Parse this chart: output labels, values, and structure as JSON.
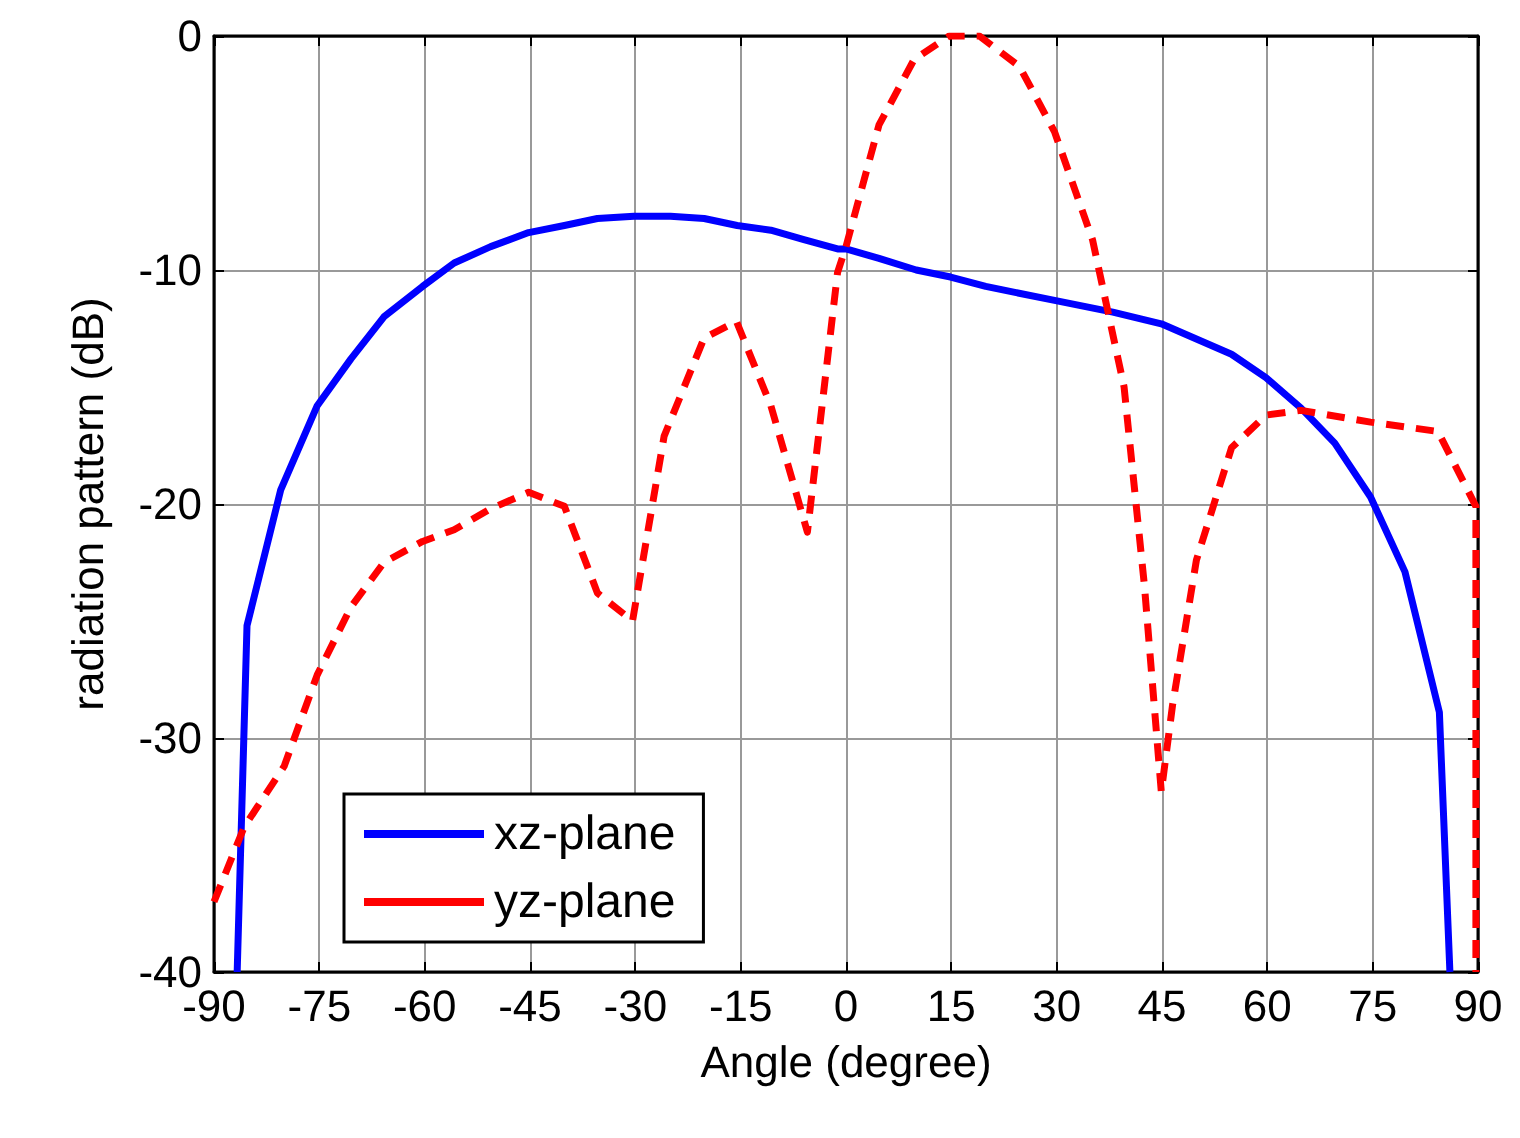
{
  "chart_data": {
    "type": "line",
    "xlabel": "Angle (degree)",
    "ylabel": "radiation pattern (dB)",
    "xlim": [
      -90,
      90
    ],
    "xticks": [
      -90,
      -75,
      -60,
      -45,
      -30,
      -15,
      0,
      15,
      30,
      45,
      60,
      75,
      90
    ],
    "ylim": [
      -40,
      0
    ],
    "yticks": [
      -40,
      -30,
      -20,
      -10,
      0
    ],
    "grid": true,
    "legend": "bottom left",
    "marker": "none",
    "series": [
      {
        "name": "xz-plane",
        "color": "#0000ff",
        "line_style": "solid",
        "x": [
          -86.7,
          -85.3,
          -80.5,
          -75.3,
          -70.5,
          -65.8,
          -60.3,
          -55.8,
          -50.6,
          -45.2,
          -40.1,
          -35.4,
          -30.2,
          -25,
          -20.2,
          -15.5,
          -10.7,
          -6,
          -1.2,
          0,
          4.7,
          10,
          14.9,
          19.9,
          29.7,
          38,
          44.9,
          54.9,
          59.8,
          64.8,
          69.6,
          74.7,
          79.6,
          84.5,
          86
        ],
        "values": [
          -40,
          -25.2,
          -19.4,
          -15.8,
          -13.8,
          -12,
          -10.7,
          -9.7,
          -9,
          -8.4,
          -8.1,
          -7.8,
          -7.7,
          -7.7,
          -7.8,
          -8.1,
          -8.3,
          -8.7,
          -9.1,
          -9.1,
          -9.5,
          -10,
          -10.3,
          -10.7,
          -11.3,
          -11.8,
          -12.3,
          -13.6,
          -14.6,
          -15.9,
          -17.4,
          -19.7,
          -22.9,
          -28.9,
          -40
        ]
      },
      {
        "name": "yz-plane",
        "color": "#ff0000",
        "line_style": "dashed",
        "x": [
          -90,
          -85.7,
          -80,
          -75.3,
          -70.5,
          -65.8,
          -60.3,
          -55.8,
          -50.6,
          -45.2,
          -40.1,
          -35.4,
          -30.4,
          -25.9,
          -20.2,
          -15.6,
          -10.7,
          -5.5,
          -1.2,
          0,
          4.7,
          9.7,
          14.7,
          19,
          24.7,
          29.7,
          35.1,
          39.6,
          42.5,
          44.9,
          46.5,
          49.9,
          54.9,
          59.8,
          64.8,
          74.7,
          84.3,
          89.7,
          89.7
        ],
        "values": [
          -37,
          -33.8,
          -31.2,
          -27.3,
          -24.4,
          -22.5,
          -21.6,
          -21.1,
          -20.2,
          -19.5,
          -20.1,
          -23.8,
          -25,
          -17.1,
          -12.9,
          -12.2,
          -15.8,
          -21.2,
          -10.1,
          -9,
          -3.8,
          -1,
          0,
          0,
          -1.3,
          -4.1,
          -8.7,
          -15,
          -23.5,
          -32.3,
          -28.6,
          -22.4,
          -17.6,
          -16.2,
          -16,
          -16.5,
          -16.9,
          -20.1,
          -40
        ]
      }
    ]
  }
}
